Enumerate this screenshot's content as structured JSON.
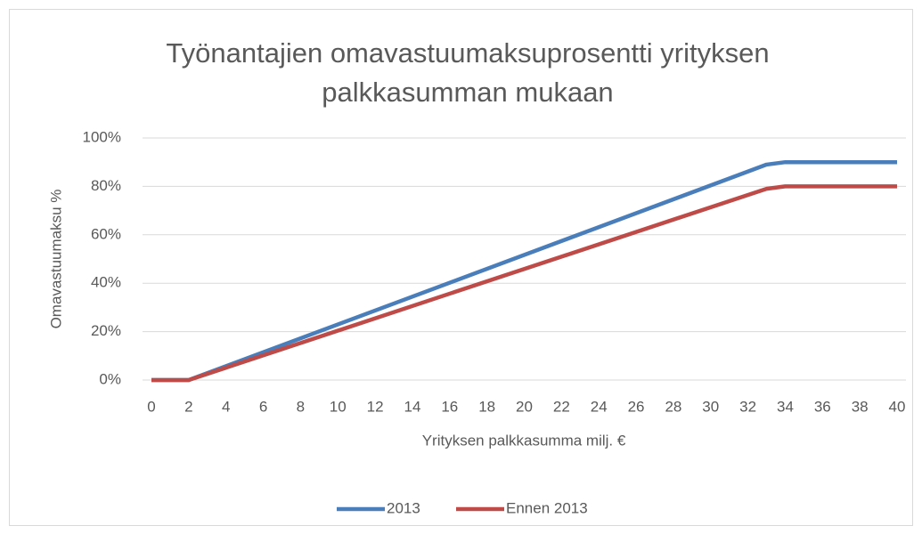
{
  "chart_data": {
    "type": "line",
    "title": "Työnantajien omavastuumaksuprosentti yrityksen palkkasumman mukaan",
    "x_label": "Yrityksen palkkasumma milj. €",
    "y_label": "Omavastuumaksu %",
    "x": [
      0,
      2,
      33,
      34,
      40
    ],
    "series": [
      {
        "name": "2013",
        "color": "#4a7ebb",
        "values": [
          0,
          0,
          89,
          90,
          90
        ]
      },
      {
        "name": "Ennen 2013",
        "color": "#be4b48",
        "values": [
          0,
          0,
          79,
          80,
          80
        ]
      }
    ],
    "xlim": [
      0,
      40
    ],
    "xticks": [
      0,
      2,
      4,
      6,
      8,
      10,
      12,
      14,
      16,
      18,
      20,
      22,
      24,
      26,
      28,
      30,
      32,
      34,
      36,
      38,
      40
    ],
    "ylim": [
      0,
      100
    ],
    "yticks": [
      {
        "value": 0,
        "label": "0%"
      },
      {
        "value": 20,
        "label": "20%"
      },
      {
        "value": 40,
        "label": "40%"
      },
      {
        "value": 60,
        "label": "60%"
      },
      {
        "value": 80,
        "label": "80%"
      },
      {
        "value": 100,
        "label": "100%"
      }
    ],
    "grid": true,
    "legend": "bottom"
  }
}
